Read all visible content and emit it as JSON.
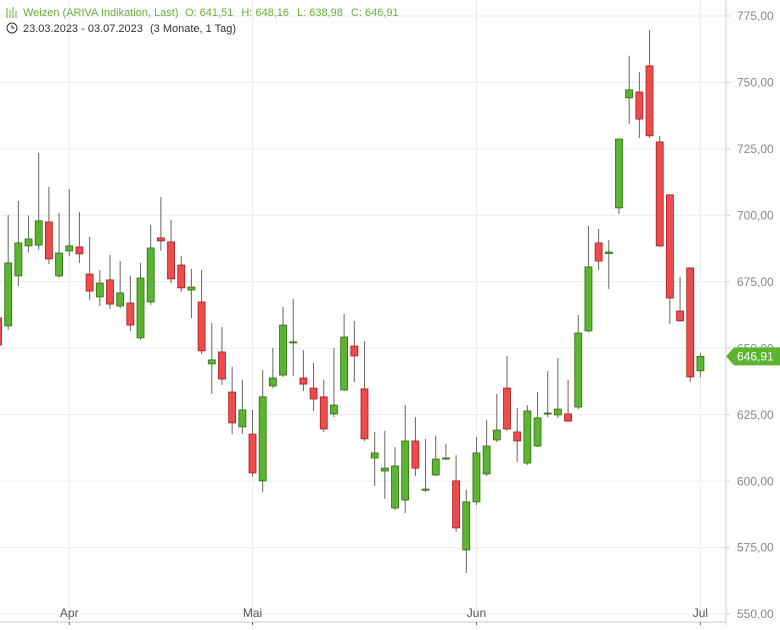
{
  "chart_data": {
    "type": "candlestick",
    "title": "Weizen (ARIVA Indikation, Last)",
    "header_stats": [
      "O: 641,51",
      "H: 648,16",
      "L: 638,98",
      "C: 646,91"
    ],
    "date_range": "23.03.2023 - 03.07.2023",
    "period": "(3 Monate, 1 Tag)",
    "last_price_label": "646,91",
    "up_color": "#5cb531",
    "down_color": "#ee4c4c",
    "grid": true,
    "ylim": [
      547,
      781
    ],
    "yticks": [
      {
        "value": 550,
        "label": "550,00"
      },
      {
        "value": 575,
        "label": "575,00"
      },
      {
        "value": 600,
        "label": "600,00"
      },
      {
        "value": 625,
        "label": "625,00"
      },
      {
        "value": 650,
        "label": "650,00"
      },
      {
        "value": 675,
        "label": "675,00"
      },
      {
        "value": 700,
        "label": "700,00"
      },
      {
        "value": 725,
        "label": "725,00"
      },
      {
        "value": 750,
        "label": "750,00"
      },
      {
        "value": 775,
        "label": "775,00"
      }
    ],
    "categories": [
      null,
      null,
      null,
      null,
      null,
      null,
      null,
      "Apr",
      null,
      null,
      null,
      null,
      null,
      null,
      null,
      null,
      null,
      null,
      null,
      null,
      null,
      null,
      null,
      null,
      null,
      "Mai",
      null,
      null,
      null,
      null,
      null,
      null,
      null,
      null,
      null,
      null,
      null,
      null,
      null,
      null,
      null,
      null,
      null,
      null,
      null,
      null,
      null,
      "Jun",
      null,
      null,
      null,
      null,
      null,
      null,
      null,
      null,
      null,
      null,
      null,
      null,
      null,
      null,
      null,
      null,
      null,
      null,
      null,
      null,
      null,
      "Jul"
    ],
    "open": [
      661.4,
      658.4,
      677.2,
      688.5,
      688.8,
      697.5,
      677.2,
      686.6,
      688.1,
      677.9,
      669.3,
      675.7,
      665.9,
      667.0,
      653.9,
      667.4,
      691.5,
      690.0,
      681.3,
      671.9,
      667.4,
      644.1,
      648.6,
      633.5,
      620.4,
      617.7,
      600.1,
      635.8,
      639.9,
      652.0,
      638.8,
      635.0,
      631.7,
      625.3,
      634.3,
      650.8,
      634.7,
      608.7,
      603.8,
      589.9,
      592.9,
      615.1,
      596.6,
      602.3,
      608.3,
      600.1,
      574.1,
      592.2,
      602.7,
      615.5,
      635.0,
      618.5,
      606.8,
      613.2,
      625.3,
      624.9,
      625.3,
      627.9,
      656.5,
      689.6,
      685.6,
      702.8,
      744.2,
      746.4,
      756.2,
      727.6,
      707.7,
      664.0,
      680.2,
      641.51
    ],
    "high": [
      662.0,
      700.1,
      705.4,
      700.0,
      723.5,
      710.7,
      700.9,
      709.9,
      701.3,
      691.9,
      679.4,
      685.1,
      682.8,
      677.2,
      682.1,
      696.4,
      706.9,
      698.3,
      684.7,
      679.8,
      679.4,
      659.5,
      658.0,
      643.0,
      638.1,
      626.8,
      641.8,
      650.1,
      665.5,
      668.5,
      649.3,
      644.5,
      638.1,
      650.1,
      662.9,
      660.3,
      652.7,
      618.5,
      618.9,
      612.8,
      628.6,
      624.1,
      615.9,
      617.0,
      614.0,
      609.8,
      596.7,
      616.6,
      623.0,
      632.8,
      647.1,
      627.5,
      628.6,
      633.5,
      641.4,
      646.3,
      638.1,
      662.5,
      696.0,
      694.9,
      690.7,
      728.7,
      760.0,
      753.9,
      769.7,
      729.9,
      707.7,
      676.8,
      680.2,
      648.16
    ],
    "low": [
      650.0,
      656.9,
      673.4,
      686.0,
      687.0,
      681.7,
      676.5,
      684.7,
      682.1,
      668.2,
      665.9,
      664.8,
      665.1,
      656.5,
      653.1,
      666.3,
      686.6,
      674.5,
      671.2,
      661.4,
      647.8,
      632.8,
      636.2,
      617.7,
      617.7,
      601.6,
      595.9,
      635.0,
      639.2,
      639.6,
      633.9,
      626.4,
      618.5,
      624.1,
      633.9,
      637.3,
      615.1,
      598.2,
      593.3,
      589.1,
      588.0,
      601.9,
      595.9,
      601.9,
      608.0,
      580.9,
      565.4,
      591.0,
      601.9,
      614.7,
      618.9,
      607.2,
      606.1,
      612.8,
      624.1,
      623.8,
      622.3,
      627.1,
      656.0,
      679.4,
      672.3,
      700.5,
      734.4,
      729.1,
      729.1,
      688.1,
      659.1,
      659.9,
      637.3,
      638.98
    ],
    "close": [
      651.2,
      682.1,
      689.6,
      691.1,
      697.9,
      683.6,
      685.8,
      688.5,
      685.5,
      671.5,
      674.5,
      666.6,
      670.8,
      658.7,
      676.4,
      687.7,
      690.4,
      676.1,
      672.7,
      673.0,
      649.0,
      645.6,
      638.4,
      621.9,
      626.8,
      603.1,
      631.7,
      638.8,
      658.7,
      652.4,
      636.5,
      630.9,
      619.6,
      628.6,
      654.2,
      647.1,
      615.9,
      610.6,
      604.9,
      605.7,
      615.1,
      604.9,
      597.0,
      608.3,
      608.7,
      582.4,
      592.2,
      610.6,
      613.2,
      619.2,
      619.6,
      615.1,
      626.4,
      623.8,
      625.6,
      627.1,
      622.6,
      655.7,
      680.6,
      682.8,
      686.2,
      728.7,
      747.2,
      736.2,
      729.9,
      688.5,
      668.9,
      660.3,
      639.2,
      646.91
    ]
  }
}
